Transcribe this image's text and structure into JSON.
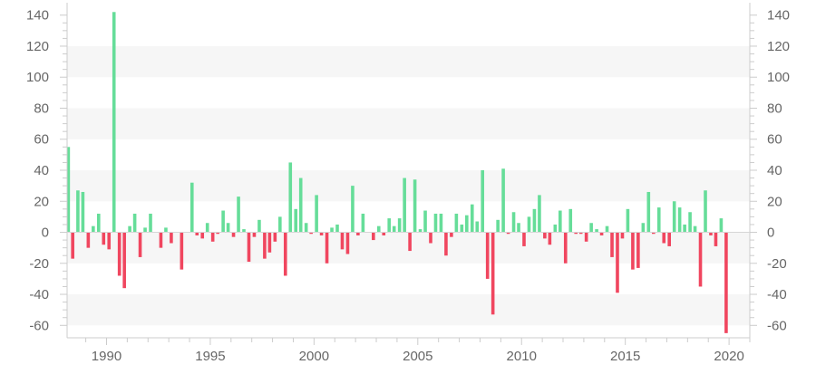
{
  "chart_data": {
    "type": "bar",
    "title": "",
    "xlabel": "",
    "ylabel": "",
    "xlim": [
      1988.1,
      2021.0
    ],
    "ylim": [
      -68,
      148
    ],
    "y_ticks": [
      -60,
      -40,
      -20,
      0,
      20,
      40,
      60,
      80,
      100,
      120,
      140
    ],
    "x_ticks": [
      1990,
      1995,
      2000,
      2005,
      2010,
      2015,
      2020
    ],
    "grid": "alternating horizontal bands",
    "legend": "none",
    "colors": {
      "positive": "#66dd99",
      "negative": "#f0465f",
      "band": "#f6f6f6",
      "axis": "#cccccc",
      "text": "#666666"
    },
    "series": [
      {
        "values": [
          [
            1988.16,
            55
          ],
          [
            1988.37,
            -17
          ],
          [
            1988.62,
            27
          ],
          [
            1988.86,
            26
          ],
          [
            1989.12,
            -10
          ],
          [
            1989.36,
            4
          ],
          [
            1989.62,
            12
          ],
          [
            1989.86,
            -8
          ],
          [
            1990.12,
            -11
          ],
          [
            1990.36,
            142
          ],
          [
            1990.62,
            -28
          ],
          [
            1990.86,
            -36
          ],
          [
            1991.12,
            4
          ],
          [
            1991.36,
            12
          ],
          [
            1991.62,
            -16
          ],
          [
            1991.86,
            3
          ],
          [
            1992.12,
            12
          ],
          [
            1992.62,
            -10
          ],
          [
            1992.86,
            3
          ],
          [
            1993.12,
            -7
          ],
          [
            1993.62,
            -24
          ],
          [
            1994.12,
            32
          ],
          [
            1994.36,
            -2
          ],
          [
            1994.62,
            -4
          ],
          [
            1994.86,
            6
          ],
          [
            1995.12,
            -6
          ],
          [
            1995.36,
            -1
          ],
          [
            1995.62,
            14
          ],
          [
            1995.86,
            6
          ],
          [
            1996.12,
            -3
          ],
          [
            1996.36,
            23
          ],
          [
            1996.62,
            2
          ],
          [
            1996.86,
            -19
          ],
          [
            1997.12,
            -3
          ],
          [
            1997.36,
            8
          ],
          [
            1997.62,
            -17
          ],
          [
            1997.86,
            -13
          ],
          [
            1998.12,
            -6
          ],
          [
            1998.36,
            10
          ],
          [
            1998.62,
            -28
          ],
          [
            1998.86,
            45
          ],
          [
            1999.12,
            15
          ],
          [
            1999.36,
            35
          ],
          [
            1999.62,
            6
          ],
          [
            1999.86,
            -1
          ],
          [
            2000.12,
            24
          ],
          [
            2000.36,
            -2
          ],
          [
            2000.62,
            -20
          ],
          [
            2000.86,
            3
          ],
          [
            2001.12,
            5
          ],
          [
            2001.36,
            -11
          ],
          [
            2001.62,
            -14
          ],
          [
            2001.86,
            30
          ],
          [
            2002.12,
            -2
          ],
          [
            2002.36,
            12
          ],
          [
            2002.62,
            0
          ],
          [
            2002.86,
            -5
          ],
          [
            2003.12,
            4
          ],
          [
            2003.36,
            -2
          ],
          [
            2003.62,
            9
          ],
          [
            2003.86,
            4
          ],
          [
            2004.12,
            9
          ],
          [
            2004.36,
            35
          ],
          [
            2004.62,
            -12
          ],
          [
            2004.86,
            34
          ],
          [
            2005.12,
            2
          ],
          [
            2005.36,
            14
          ],
          [
            2005.62,
            -7
          ],
          [
            2005.86,
            12
          ],
          [
            2006.12,
            12
          ],
          [
            2006.36,
            -15
          ],
          [
            2006.62,
            -3
          ],
          [
            2006.86,
            12
          ],
          [
            2007.12,
            5
          ],
          [
            2007.36,
            11
          ],
          [
            2007.62,
            18
          ],
          [
            2007.86,
            7
          ],
          [
            2008.12,
            40
          ],
          [
            2008.36,
            -30
          ],
          [
            2008.62,
            -53
          ],
          [
            2008.86,
            8
          ],
          [
            2009.12,
            41
          ],
          [
            2009.36,
            -1
          ],
          [
            2009.62,
            13
          ],
          [
            2009.86,
            6
          ],
          [
            2010.12,
            -9
          ],
          [
            2010.36,
            10
          ],
          [
            2010.62,
            15
          ],
          [
            2010.86,
            24
          ],
          [
            2011.12,
            -4
          ],
          [
            2011.36,
            -8
          ],
          [
            2011.62,
            5
          ],
          [
            2011.86,
            14
          ],
          [
            2012.12,
            -20
          ],
          [
            2012.36,
            15
          ],
          [
            2012.62,
            -1
          ],
          [
            2012.86,
            -1
          ],
          [
            2013.12,
            -6
          ],
          [
            2013.36,
            6
          ],
          [
            2013.62,
            2
          ],
          [
            2013.86,
            -2
          ],
          [
            2014.12,
            4
          ],
          [
            2014.36,
            -16
          ],
          [
            2014.62,
            -39
          ],
          [
            2014.86,
            -4
          ],
          [
            2015.12,
            15
          ],
          [
            2015.36,
            -24
          ],
          [
            2015.62,
            -23
          ],
          [
            2015.86,
            6
          ],
          [
            2016.12,
            26
          ],
          [
            2016.36,
            -1
          ],
          [
            2016.62,
            16
          ],
          [
            2016.86,
            -7
          ],
          [
            2017.12,
            -9
          ],
          [
            2017.36,
            20
          ],
          [
            2017.62,
            16
          ],
          [
            2017.86,
            5
          ],
          [
            2018.12,
            13
          ],
          [
            2018.36,
            4
          ],
          [
            2018.62,
            -35
          ],
          [
            2018.86,
            27
          ],
          [
            2019.12,
            -2
          ],
          [
            2019.36,
            -9
          ],
          [
            2019.62,
            9
          ],
          [
            2019.86,
            -65
          ]
        ]
      }
    ]
  }
}
